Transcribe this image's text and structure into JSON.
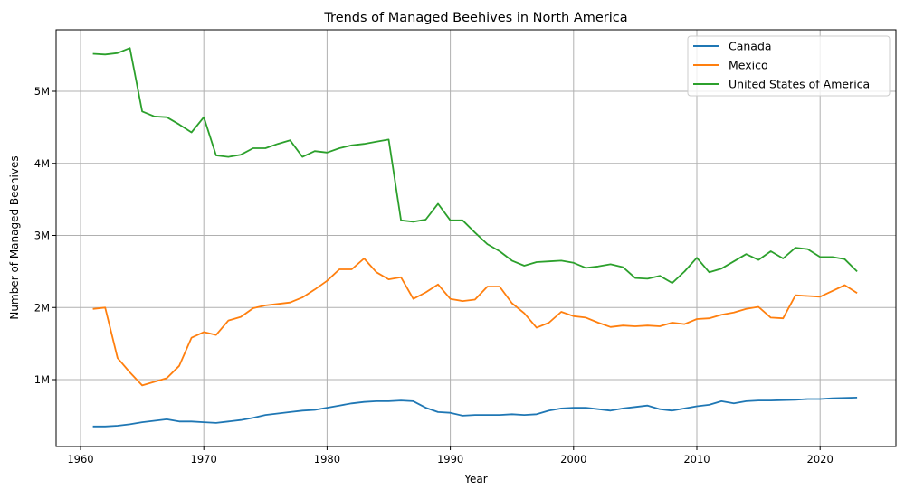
{
  "chart_data": {
    "type": "line",
    "title": "Trends of Managed Beehives in North America",
    "xlabel": "Year",
    "ylabel": "Number of Managed Beehives",
    "xlim": [
      1957,
      2026
    ],
    "ylim": [
      0,
      5800000
    ],
    "grid": true,
    "legend_position": "top-right",
    "x_ticks": [
      1960,
      1970,
      1980,
      1990,
      2000,
      2010,
      2020
    ],
    "y_ticks": [
      {
        "value": 1000000,
        "label": "1M"
      },
      {
        "value": 2000000,
        "label": "2M"
      },
      {
        "value": 3000000,
        "label": "3M"
      },
      {
        "value": 4000000,
        "label": "4M"
      },
      {
        "value": 5000000,
        "label": "5M"
      }
    ],
    "x": [
      1961,
      1962,
      1963,
      1964,
      1965,
      1966,
      1967,
      1968,
      1969,
      1970,
      1971,
      1972,
      1973,
      1974,
      1975,
      1976,
      1977,
      1978,
      1979,
      1980,
      1981,
      1982,
      1983,
      1984,
      1985,
      1986,
      1987,
      1988,
      1989,
      1990,
      1991,
      1992,
      1993,
      1994,
      1995,
      1996,
      1997,
      1998,
      1999,
      2000,
      2001,
      2002,
      2003,
      2004,
      2005,
      2006,
      2007,
      2008,
      2009,
      2010,
      2011,
      2012,
      2013,
      2014,
      2015,
      2016,
      2017,
      2018,
      2019,
      2020,
      2021,
      2022,
      2023
    ],
    "series": [
      {
        "name": "Canada",
        "color": "#1f77b4",
        "values": [
          350000,
          350000,
          360000,
          380000,
          410000,
          430000,
          450000,
          420000,
          420000,
          410000,
          400000,
          420000,
          440000,
          470000,
          510000,
          530000,
          550000,
          570000,
          580000,
          610000,
          640000,
          670000,
          690000,
          700000,
          700000,
          710000,
          700000,
          610000,
          550000,
          540000,
          500000,
          510000,
          510000,
          510000,
          520000,
          510000,
          520000,
          570000,
          600000,
          610000,
          610000,
          590000,
          570000,
          600000,
          620000,
          640000,
          590000,
          570000,
          600000,
          630000,
          650000,
          700000,
          670000,
          700000,
          710000,
          710000,
          715000,
          720000,
          730000,
          730000,
          740000,
          745000,
          750000
        ]
      },
      {
        "name": "Mexico",
        "color": "#ff7f0e",
        "values": [
          1980000,
          2000000,
          1300000,
          1100000,
          920000,
          970000,
          1020000,
          1190000,
          1580000,
          1660000,
          1620000,
          1820000,
          1870000,
          1990000,
          2030000,
          2050000,
          2070000,
          2140000,
          2250000,
          2370000,
          2530000,
          2530000,
          2680000,
          2490000,
          2390000,
          2420000,
          2120000,
          2210000,
          2320000,
          2120000,
          2090000,
          2110000,
          2290000,
          2290000,
          2060000,
          1920000,
          1720000,
          1790000,
          1940000,
          1880000,
          1860000,
          1790000,
          1730000,
          1750000,
          1740000,
          1750000,
          1740000,
          1790000,
          1770000,
          1840000,
          1850000,
          1900000,
          1930000,
          1980000,
          2010000,
          1860000,
          1850000,
          2170000,
          2160000,
          2150000,
          2230000,
          2310000,
          2200000
        ]
      },
      {
        "name": "United States of America",
        "color": "#2ca02c",
        "values": [
          5520000,
          5510000,
          5530000,
          5600000,
          4720000,
          4650000,
          4640000,
          4540000,
          4430000,
          4640000,
          4110000,
          4090000,
          4120000,
          4210000,
          4210000,
          4270000,
          4320000,
          4090000,
          4170000,
          4150000,
          4210000,
          4250000,
          4270000,
          4300000,
          4330000,
          3210000,
          3190000,
          3220000,
          3440000,
          3210000,
          3210000,
          3040000,
          2880000,
          2780000,
          2650000,
          2580000,
          2630000,
          2640000,
          2650000,
          2620000,
          2550000,
          2570000,
          2600000,
          2560000,
          2410000,
          2400000,
          2440000,
          2340000,
          2500000,
          2690000,
          2490000,
          2540000,
          2640000,
          2740000,
          2660000,
          2780000,
          2680000,
          2830000,
          2810000,
          2700000,
          2700000,
          2670000,
          2500000
        ]
      }
    ]
  }
}
